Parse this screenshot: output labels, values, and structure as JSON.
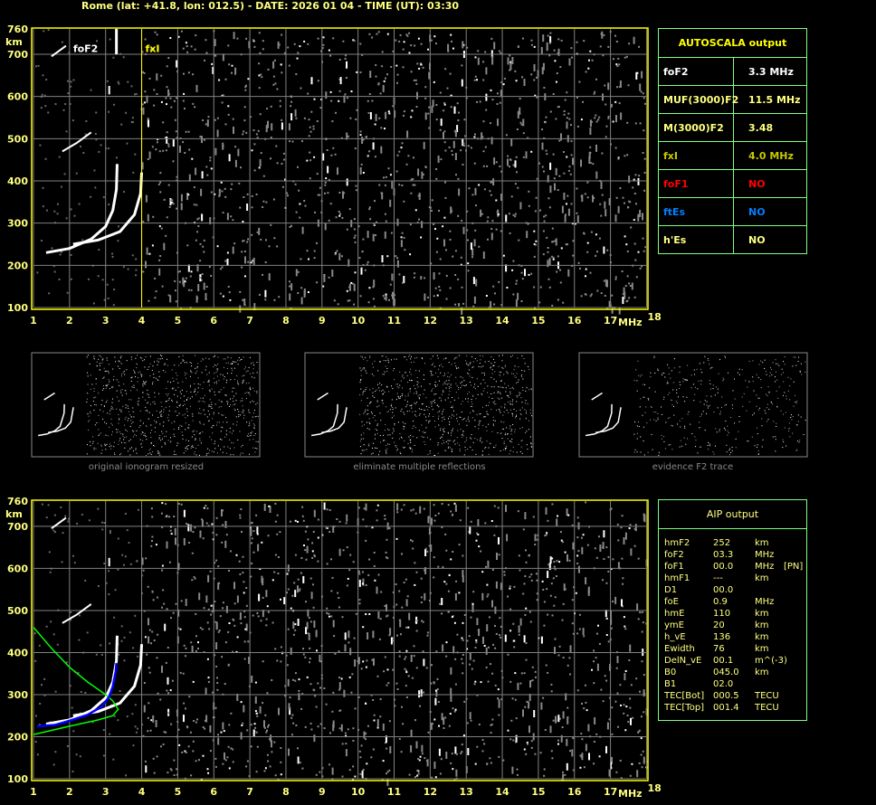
{
  "header": {
    "title": "Rome (lat: +41.8, lon: 012.5) - DATE: 2026 01 04 - TIME (UT): 03:30"
  },
  "ionogram": {
    "x_ticks": [
      "1",
      "2",
      "3",
      "4",
      "5",
      "6",
      "7",
      "8",
      "9",
      "10",
      "11",
      "12",
      "13",
      "14",
      "15",
      "16",
      "17",
      "18"
    ],
    "y_ticks": [
      "760",
      "700",
      "600",
      "500",
      "400",
      "300",
      "200",
      "100"
    ],
    "y_unit": "km",
    "x_unit": "MHz",
    "markers": {
      "foF2": "foF2",
      "fxI": "fxI"
    },
    "colors": {
      "frame": "#ffff00",
      "grid": "#808080",
      "trace": "#ffffff",
      "model": "#00ff00",
      "aip_trace": "#0000ff"
    }
  },
  "thumbnails": [
    {
      "caption": "original ionogram resized"
    },
    {
      "caption": "eliminate multiple reflections"
    },
    {
      "caption": "evidence F2 trace"
    }
  ],
  "autoscala": {
    "title": "AUTOSCALA output",
    "rows": [
      {
        "key": "foF2",
        "value": "3.3 MHz",
        "color": "#ffffff"
      },
      {
        "key": "MUF(3000)F2",
        "value": "11.5 MHz",
        "color": "#ffff80"
      },
      {
        "key": "M(3000)F2",
        "value": "3.48",
        "color": "#ffff80"
      },
      {
        "key": "fxI",
        "value": "4.0 MHz",
        "color": "#c8c800"
      },
      {
        "key": "foF1",
        "value": "NO",
        "color": "#ff0000"
      },
      {
        "key": "ftEs",
        "value": "NO",
        "color": "#0080ff"
      },
      {
        "key": "h'Es",
        "value": "NO",
        "color": "#ffff80"
      }
    ]
  },
  "aip": {
    "title": "AIP output",
    "rows": [
      [
        "hmF2",
        "252",
        "km",
        ""
      ],
      [
        "foF2",
        "03.3",
        "MHz",
        ""
      ],
      [
        "foF1",
        "00.0",
        "MHz",
        "[PN]"
      ],
      [
        "hmF1",
        "---",
        "km",
        ""
      ],
      [
        "D1",
        "00.0",
        "",
        ""
      ],
      [
        "foE",
        "0.9",
        "MHz",
        ""
      ],
      [
        "hmE",
        "110",
        "km",
        ""
      ],
      [
        "ymE",
        "20",
        "km",
        ""
      ],
      [
        "h_vE",
        "136",
        "km",
        ""
      ],
      [
        "Ewidth",
        "76",
        "km",
        ""
      ],
      [
        "DelN_vE",
        "00.1",
        "m^(-3)",
        ""
      ],
      [
        "B0",
        "045.0",
        "km",
        ""
      ],
      [
        "B1",
        "02.0",
        "",
        ""
      ],
      [
        "TEC[Bot]",
        "000.5",
        "TECU",
        ""
      ],
      [
        "TEC[Top]",
        "001.4",
        "TECU",
        ""
      ]
    ]
  }
}
